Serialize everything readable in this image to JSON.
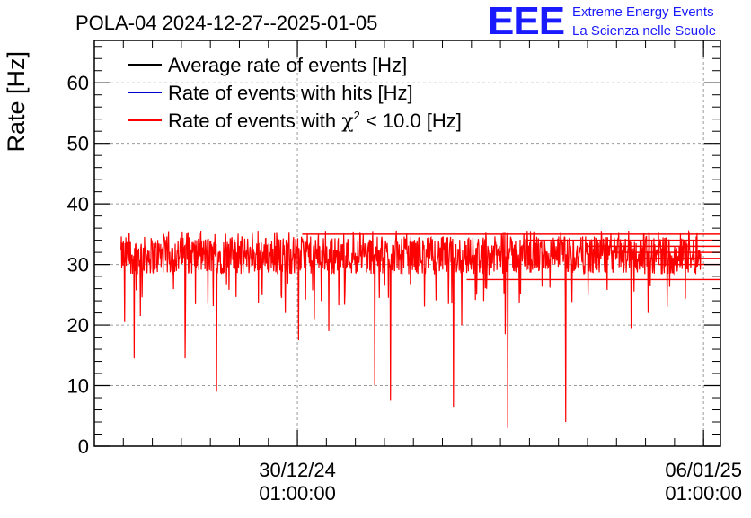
{
  "chart_data": {
    "type": "line",
    "title": "POLA-04 2024-12-27--2025-01-05",
    "ylabel": "Rate [Hz]",
    "xlabel": "",
    "ylim": [
      0,
      67
    ],
    "yticks": [
      0,
      10,
      20,
      30,
      40,
      50,
      60
    ],
    "xrange": [
      "2024-12-26T13:00:00",
      "2025-01-06T08:00:00"
    ],
    "xticks": [
      {
        "x": "2024-12-30T01:00:00",
        "label_line1": "30/12/24",
        "label_line2": "01:00:00"
      },
      {
        "x": "2025-01-06T01:00:00",
        "label_line1": "06/01/25",
        "label_line2": "01:00:00"
      }
    ],
    "grid": true,
    "legend_position": "top-left",
    "series": [
      {
        "name": "Average rate of events [Hz]",
        "color": "#000000",
        "values": []
      },
      {
        "name": "Rate of events with hits [Hz]",
        "color": "#0000cc",
        "values": []
      },
      {
        "name": "Rate of events with χ² < 10.0 [Hz]",
        "name_prefix": "Rate of events with ",
        "name_symbol": "χ",
        "name_sup": "2",
        "name_suffix": " < 10.0 [Hz]",
        "color": "#ff0000",
        "x_start": "2024-12-27T00:00:00",
        "x_end": "2025-01-05T23:50:00",
        "baseline_mean": 31.5,
        "band_min": 28,
        "band_max": 35,
        "dips": [
          {
            "x": "2024-12-27T01:30:00",
            "y": 20.5
          },
          {
            "x": "2024-12-27T05:30:00",
            "y": 14.5
          },
          {
            "x": "2024-12-27T08:00:00",
            "y": 21.5
          },
          {
            "x": "2024-12-28T02:30:00",
            "y": 14.5
          },
          {
            "x": "2024-12-28T12:00:00",
            "y": 23.5
          },
          {
            "x": "2024-12-28T15:30:00",
            "y": 9.0
          },
          {
            "x": "2024-12-29T20:00:00",
            "y": 22.0
          },
          {
            "x": "2024-12-30T01:30:00",
            "y": 17.5
          },
          {
            "x": "2024-12-30T08:00:00",
            "y": 21.0
          },
          {
            "x": "2024-12-30T14:00:00",
            "y": 19.0
          },
          {
            "x": "2024-12-31T09:00:00",
            "y": 10.0
          },
          {
            "x": "2024-12-31T15:30:00",
            "y": 7.5
          },
          {
            "x": "2025-01-01T17:30:00",
            "y": 6.5
          },
          {
            "x": "2025-01-01T21:00:00",
            "y": 20.0
          },
          {
            "x": "2025-01-02T15:00:00",
            "y": 18.5
          },
          {
            "x": "2025-01-02T16:00:00",
            "y": 3.0
          },
          {
            "x": "2025-01-03T16:00:00",
            "y": 4.0
          },
          {
            "x": "2025-01-04T19:00:00",
            "y": 19.5
          },
          {
            "x": "2025-01-05T02:00:00",
            "y": 22.0
          },
          {
            "x": "2025-01-05T10:00:00",
            "y": 23.0
          }
        ],
        "flat_segments": [
          {
            "y": 35.0,
            "x_from": "2024-12-30T03:00:00",
            "x_to": "2025-01-06T08:00:00"
          },
          {
            "y": 34.0,
            "x_from": "2025-01-03T00:00:00",
            "x_to": "2025-01-06T08:00:00"
          },
          {
            "y": 33.0,
            "x_from": "2025-01-04T00:00:00",
            "x_to": "2025-01-06T08:00:00"
          },
          {
            "y": 32.0,
            "x_from": "2025-01-04T12:00:00",
            "x_to": "2025-01-06T08:00:00"
          },
          {
            "y": 31.0,
            "x_from": "2025-01-05T00:00:00",
            "x_to": "2025-01-06T08:00:00"
          },
          {
            "y": 30.0,
            "x_from": "2025-01-05T06:00:00",
            "x_to": "2025-01-06T08:00:00"
          },
          {
            "y": 27.5,
            "x_from": "2025-01-01T23:00:00",
            "x_to": "2025-01-06T08:00:00"
          }
        ]
      }
    ]
  },
  "logo": {
    "letters": "EEE",
    "line1": "Extreme Energy Events",
    "line2": "La Scienza nelle Scuole",
    "color": "#1a1aff"
  }
}
